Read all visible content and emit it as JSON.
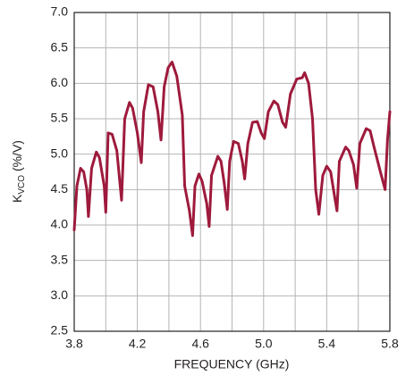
{
  "chart_data": {
    "type": "line",
    "x_label": "FREQUENCY (GHz)",
    "y_label": {
      "main": "K",
      "sub": "VCO",
      "rest": " (%/V)"
    },
    "xlim": [
      3.8,
      5.8
    ],
    "xticks": [
      3.8,
      4.2,
      4.6,
      {
        "value": 5,
        "label": "5.0"
      },
      5.4,
      5.8
    ],
    "x_minor_ticks": [
      4,
      4.4,
      4.8,
      5.2,
      5.6
    ],
    "ylim": [
      2.5,
      7
    ],
    "yticks": [
      2.5,
      {
        "value": 3,
        "label": "3.0"
      },
      3.5,
      {
        "value": 4,
        "label": "4.0"
      },
      4.5,
      {
        "value": 5,
        "label": "5.0"
      },
      5.5,
      {
        "value": 6,
        "label": "6.0"
      },
      6.5,
      {
        "value": 7,
        "label": "7.0"
      }
    ],
    "grid": true,
    "series": [
      {
        "color": "#9e1a3c",
        "x": [
          3.8,
          3.817,
          3.84,
          3.86,
          3.88,
          3.89,
          3.91,
          3.94,
          3.96,
          3.99,
          4.0,
          4.015,
          4.04,
          4.07,
          4.1,
          4.12,
          4.15,
          4.17,
          4.2,
          4.225,
          4.24,
          4.27,
          4.3,
          4.33,
          4.35,
          4.37,
          4.395,
          4.42,
          4.45,
          4.485,
          4.5,
          4.53,
          4.55,
          4.565,
          4.59,
          4.61,
          4.64,
          4.655,
          4.67,
          4.71,
          4.73,
          4.75,
          4.77,
          4.785,
          4.81,
          4.84,
          4.865,
          4.88,
          4.9,
          4.93,
          4.96,
          4.985,
          5.005,
          5.03,
          5.065,
          5.09,
          5.12,
          5.14,
          5.17,
          5.21,
          5.245,
          5.26,
          5.285,
          5.31,
          5.33,
          5.35,
          5.375,
          5.4,
          5.425,
          5.45,
          5.465,
          5.48,
          5.52,
          5.54,
          5.57,
          5.59,
          5.61,
          5.65,
          5.675,
          5.7,
          5.74,
          5.77,
          5.785,
          5.8
        ],
        "values": [
          3.93,
          4.55,
          4.8,
          4.75,
          4.5,
          4.12,
          4.8,
          5.03,
          4.95,
          4.55,
          4.18,
          5.3,
          5.28,
          5.05,
          4.35,
          5.5,
          5.73,
          5.65,
          5.3,
          4.88,
          5.6,
          5.98,
          5.95,
          5.6,
          5.2,
          5.95,
          6.22,
          6.3,
          6.1,
          5.55,
          4.55,
          4.2,
          3.85,
          4.55,
          4.72,
          4.62,
          4.3,
          3.98,
          4.7,
          4.97,
          4.9,
          4.6,
          4.22,
          4.9,
          5.18,
          5.15,
          4.9,
          4.65,
          5.15,
          5.45,
          5.46,
          5.3,
          5.22,
          5.6,
          5.75,
          5.7,
          5.45,
          5.38,
          5.85,
          6.06,
          6.08,
          6.15,
          6.0,
          5.5,
          4.5,
          4.15,
          4.7,
          4.83,
          4.75,
          4.4,
          4.2,
          4.9,
          5.1,
          5.05,
          4.85,
          4.52,
          5.15,
          5.36,
          5.33,
          5.1,
          4.75,
          4.5,
          5.2,
          5.6
        ]
      }
    ]
  }
}
